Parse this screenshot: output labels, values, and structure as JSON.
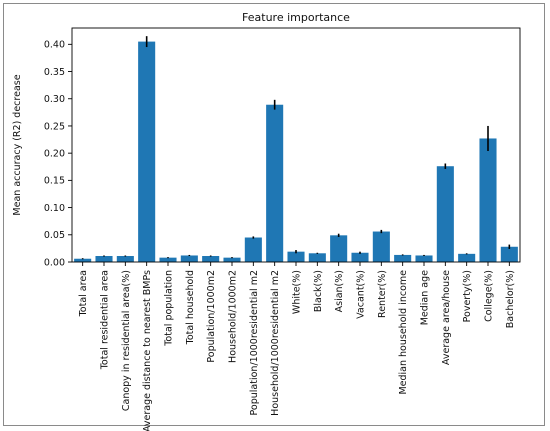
{
  "chart_data": {
    "type": "bar",
    "title": "Feature importance",
    "xlabel": "",
    "ylabel": "Mean accuracy (R2) decrease",
    "ylim": [
      0,
      0.43
    ],
    "yticks": [
      "0.00",
      "0.05",
      "0.10",
      "0.15",
      "0.20",
      "0.25",
      "0.30",
      "0.35",
      "0.40"
    ],
    "grid": false,
    "bar_color": "#1f77b4",
    "error_color": "#000000",
    "categories": [
      "Total area",
      "Total residential area",
      "Canopy in residential area(%)",
      "Average distance to nearest BMPs",
      "Total population",
      "Total household",
      "Population/1000m2",
      "Household/1000m2",
      "Population/1000residential m2",
      "Household/1000residential m2",
      "White(%)",
      "Black(%)",
      "Asian(%)",
      "Vacant(%)",
      "Renter(%)",
      "Median household income",
      "Median age",
      "Average area/house",
      "Poverty(%)",
      "College(%)",
      "Bachelor(%)"
    ],
    "values": [
      0.006,
      0.011,
      0.011,
      0.405,
      0.008,
      0.012,
      0.011,
      0.008,
      0.045,
      0.289,
      0.019,
      0.016,
      0.049,
      0.017,
      0.056,
      0.013,
      0.012,
      0.176,
      0.015,
      0.227,
      0.028
    ],
    "errors": [
      0.001,
      0.001,
      0.001,
      0.01,
      0.001,
      0.001,
      0.001,
      0.001,
      0.002,
      0.009,
      0.003,
      0.001,
      0.003,
      0.002,
      0.003,
      0.001,
      0.001,
      0.005,
      0.001,
      0.023,
      0.004
    ]
  }
}
